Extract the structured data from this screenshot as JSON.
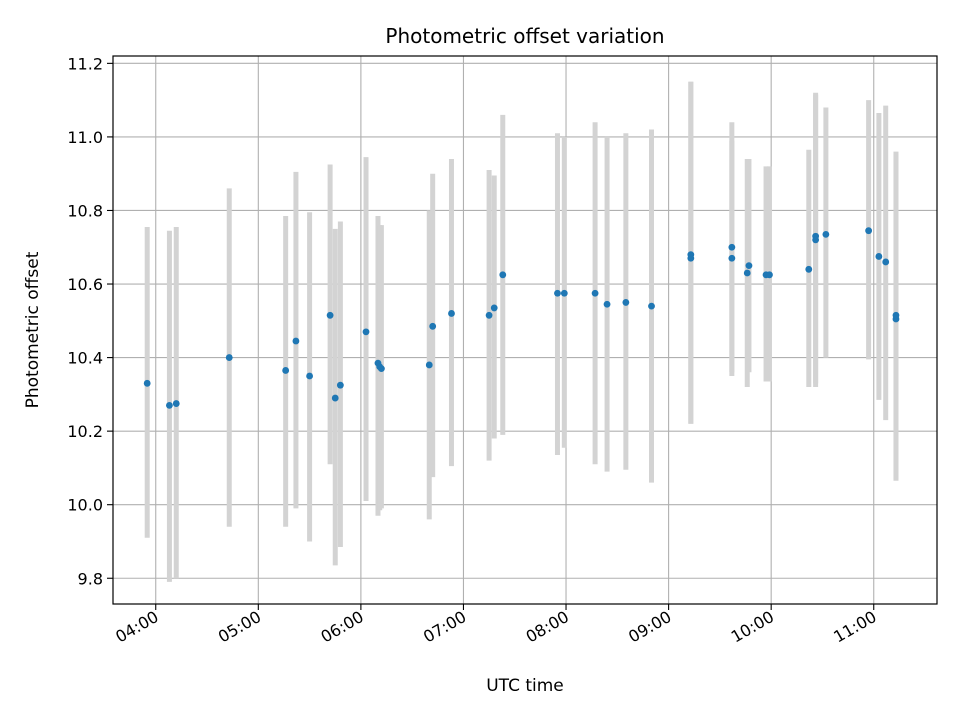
{
  "chart_data": {
    "type": "scatter",
    "title": "Photometric offset variation",
    "xlabel": "UTC time",
    "ylabel": "Photometric offset",
    "grid": true,
    "colors": {
      "points": "#1f77b4",
      "errorbars": "#d3d3d3",
      "grid": "#b0b0b0"
    },
    "xlim": [
      "03:35",
      "11:37"
    ],
    "ylim": [
      9.73,
      11.22
    ],
    "x_ticks": [
      "04:00",
      "05:00",
      "06:00",
      "07:00",
      "08:00",
      "09:00",
      "10:00",
      "11:00"
    ],
    "y_ticks": [
      "9.8",
      "10.0",
      "10.2",
      "10.4",
      "10.6",
      "10.8",
      "11.0",
      "11.2"
    ],
    "series": [
      {
        "x": [
          "03:55",
          "04:08",
          "04:12",
          "04:43",
          "05:16",
          "05:22",
          "05:30",
          "05:42",
          "05:45",
          "05:48",
          "06:03",
          "06:10",
          "06:11",
          "06:12",
          "06:40",
          "06:42",
          "06:53",
          "07:15",
          "07:18",
          "07:23",
          "07:55",
          "07:59",
          "08:17",
          "08:24",
          "08:35",
          "08:50",
          "09:13",
          "09:13",
          "09:37",
          "09:37",
          "09:46",
          "09:47",
          "09:57",
          "09:59",
          "10:22",
          "10:26",
          "10:26",
          "10:32",
          "10:57",
          "11:03",
          "11:07",
          "11:13",
          "11:13"
        ],
        "y": [
          10.33,
          10.27,
          10.275,
          10.4,
          10.365,
          10.445,
          10.35,
          10.515,
          10.29,
          10.325,
          10.47,
          10.385,
          10.375,
          10.37,
          10.38,
          10.485,
          10.52,
          10.515,
          10.535,
          10.625,
          10.575,
          10.575,
          10.575,
          10.545,
          10.55,
          10.54,
          10.68,
          10.67,
          10.7,
          10.67,
          10.63,
          10.65,
          10.625,
          10.625,
          10.64,
          10.73,
          10.72,
          10.735,
          10.745,
          10.675,
          10.66,
          10.505,
          10.515
        ],
        "y_low": [
          9.91,
          9.79,
          9.8,
          9.94,
          9.94,
          9.99,
          9.9,
          10.11,
          9.835,
          9.885,
          10.01,
          9.97,
          9.985,
          9.99,
          9.96,
          10.075,
          10.105,
          10.12,
          10.18,
          10.19,
          10.135,
          10.155,
          10.11,
          10.09,
          10.095,
          10.06,
          10.22,
          10.22,
          10.35,
          10.36,
          10.32,
          10.36,
          10.335,
          10.335,
          10.32,
          10.33,
          10.32,
          10.4,
          10.395,
          10.285,
          10.23,
          10.065,
          10.07
        ],
        "y_high": [
          10.755,
          10.745,
          10.755,
          10.86,
          10.785,
          10.905,
          10.795,
          10.925,
          10.75,
          10.77,
          10.945,
          10.785,
          10.76,
          10.76,
          10.8,
          10.9,
          10.94,
          10.91,
          10.895,
          11.06,
          11.01,
          11.0,
          11.04,
          11.0,
          11.01,
          11.02,
          11.15,
          11.15,
          11.04,
          10.99,
          10.94,
          10.94,
          10.92,
          10.92,
          10.965,
          11.12,
          11.115,
          11.08,
          11.1,
          11.065,
          11.085,
          10.96,
          10.955
        ]
      }
    ]
  }
}
